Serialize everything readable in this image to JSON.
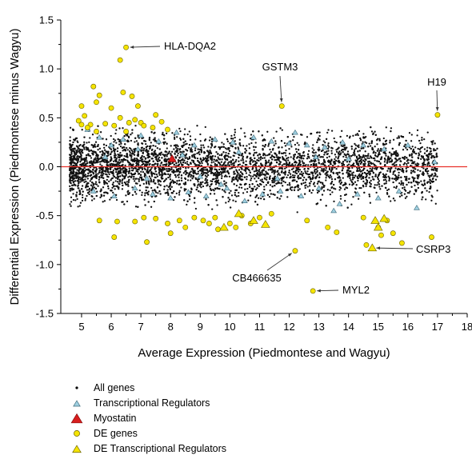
{
  "chart_data": {
    "type": "scatter",
    "title": "",
    "xlabel": "Average Expression (Piedmontese and Wagyu)",
    "ylabel": "Differential Expression (Piedmontese minus Wagyu)",
    "xlim": [
      4.3,
      18
    ],
    "ylim": [
      -1.5,
      1.5
    ],
    "xticks": [
      5,
      6,
      7,
      8,
      9,
      10,
      11,
      12,
      13,
      14,
      15,
      16,
      17,
      18
    ],
    "yticks": [
      -1.5,
      -1.0,
      -0.5,
      0.0,
      0.5,
      1.0,
      1.5
    ],
    "ytick_labels": [
      "-1.5",
      "-1.0",
      "-0.5",
      "0.0",
      "0.5",
      "1.0",
      "1.5"
    ],
    "reference_line": {
      "y": 0,
      "color": "#e8302a"
    },
    "legend_position": "bottom-left",
    "background_cloud": {
      "series": "All genes",
      "note": "dense cloud of thousands of points centred on y=0, spread roughly -0.35..0.35 across x 4.6..17"
    },
    "series": [
      {
        "name": "DE genes",
        "marker": "circle",
        "color": "#f5e400",
        "points": [
          [
            6.5,
            1.22
          ],
          [
            6.3,
            1.09
          ],
          [
            5.4,
            0.82
          ],
          [
            5.6,
            0.73
          ],
          [
            6.4,
            0.76
          ],
          [
            6.7,
            0.72
          ],
          [
            5.0,
            0.62
          ],
          [
            5.5,
            0.66
          ],
          [
            6.0,
            0.6
          ],
          [
            6.9,
            0.62
          ],
          [
            4.9,
            0.47
          ],
          [
            5.1,
            0.52
          ],
          [
            5.3,
            0.43
          ],
          [
            5.0,
            0.43
          ],
          [
            5.2,
            0.4
          ],
          [
            5.8,
            0.44
          ],
          [
            6.1,
            0.42
          ],
          [
            6.3,
            0.5
          ],
          [
            6.6,
            0.45
          ],
          [
            6.8,
            0.48
          ],
          [
            7.0,
            0.45
          ],
          [
            7.1,
            0.42
          ],
          [
            7.4,
            0.4
          ],
          [
            7.5,
            0.53
          ],
          [
            7.7,
            0.46
          ],
          [
            7.9,
            0.38
          ],
          [
            5.5,
            0.36
          ],
          [
            6.5,
            0.36
          ],
          [
            11.75,
            0.62
          ],
          [
            17.0,
            0.53
          ],
          [
            5.6,
            -0.55
          ],
          [
            6.2,
            -0.56
          ],
          [
            6.8,
            -0.56
          ],
          [
            7.1,
            -0.52
          ],
          [
            7.5,
            -0.53
          ],
          [
            7.9,
            -0.58
          ],
          [
            8.3,
            -0.55
          ],
          [
            8.5,
            -0.62
          ],
          [
            8.8,
            -0.52
          ],
          [
            9.1,
            -0.55
          ],
          [
            9.3,
            -0.58
          ],
          [
            9.5,
            -0.52
          ],
          [
            9.6,
            -0.64
          ],
          [
            10.0,
            -0.58
          ],
          [
            10.2,
            -0.62
          ],
          [
            10.4,
            -0.5
          ],
          [
            10.7,
            -0.58
          ],
          [
            11.0,
            -0.52
          ],
          [
            11.4,
            -0.48
          ],
          [
            12.6,
            -0.55
          ],
          [
            13.3,
            -0.62
          ],
          [
            14.5,
            -0.52
          ],
          [
            15.0,
            -0.62
          ],
          [
            15.3,
            -0.55
          ],
          [
            15.8,
            -0.78
          ],
          [
            6.1,
            -0.72
          ],
          [
            7.2,
            -0.77
          ],
          [
            8.0,
            -0.68
          ],
          [
            13.6,
            -0.67
          ],
          [
            15.1,
            -0.7
          ],
          [
            15.5,
            -0.68
          ],
          [
            16.8,
            -0.72
          ],
          [
            14.6,
            -0.8
          ],
          [
            12.2,
            -0.86
          ],
          [
            12.8,
            -1.27
          ]
        ]
      },
      {
        "name": "DE Transcriptional Regulators",
        "marker": "triangle",
        "color": "#f5e400",
        "points": [
          [
            9.8,
            -0.62
          ],
          [
            11.2,
            -0.59
          ],
          [
            10.3,
            -0.48
          ],
          [
            10.8,
            -0.55
          ],
          [
            14.8,
            -0.83
          ],
          [
            14.9,
            -0.55
          ],
          [
            15.0,
            -0.62
          ],
          [
            15.2,
            -0.53
          ]
        ]
      },
      {
        "name": "Myostatin",
        "marker": "triangle",
        "color": "#d81e1e",
        "points": [
          [
            8.05,
            0.08
          ]
        ]
      },
      {
        "name": "Transcriptional Regulators",
        "marker": "triangle",
        "color": "#9ecfe0",
        "points": [
          [
            5.2,
            0.38
          ],
          [
            5.6,
            0.3
          ],
          [
            6.0,
            0.22
          ],
          [
            6.4,
            0.28
          ],
          [
            7.0,
            0.32
          ],
          [
            7.6,
            0.26
          ],
          [
            8.2,
            0.35
          ],
          [
            8.8,
            0.22
          ],
          [
            9.5,
            0.28
          ],
          [
            10.1,
            0.25
          ],
          [
            10.8,
            0.3
          ],
          [
            11.4,
            0.26
          ],
          [
            12.0,
            0.24
          ],
          [
            12.6,
            0.22
          ],
          [
            13.2,
            0.2
          ],
          [
            13.8,
            0.25
          ],
          [
            14.5,
            0.22
          ],
          [
            15.2,
            0.18
          ],
          [
            16.0,
            0.22
          ],
          [
            5.4,
            -0.25
          ],
          [
            6.1,
            -0.3
          ],
          [
            6.8,
            -0.22
          ],
          [
            7.4,
            -0.28
          ],
          [
            8.0,
            -0.32
          ],
          [
            8.6,
            -0.26
          ],
          [
            9.2,
            -0.3
          ],
          [
            9.9,
            -0.22
          ],
          [
            10.5,
            -0.35
          ],
          [
            11.1,
            -0.28
          ],
          [
            11.7,
            -0.25
          ],
          [
            12.4,
            -0.3
          ],
          [
            13.0,
            -0.22
          ],
          [
            13.7,
            -0.38
          ],
          [
            14.3,
            -0.28
          ],
          [
            15.0,
            -0.32
          ],
          [
            15.7,
            -0.25
          ],
          [
            16.3,
            -0.42
          ],
          [
            8.4,
            0.12
          ],
          [
            9.0,
            -0.1
          ],
          [
            10.3,
            0.15
          ],
          [
            11.6,
            -0.12
          ],
          [
            12.9,
            0.1
          ],
          [
            5.8,
            0.1
          ],
          [
            7.2,
            -0.12
          ],
          [
            14.0,
            0.08
          ],
          [
            16.9,
            0.05
          ],
          [
            6.9,
            0.18
          ],
          [
            9.7,
            -0.18
          ],
          [
            12.2,
            0.35
          ],
          [
            13.5,
            -0.45
          ]
        ]
      }
    ],
    "annotations": [
      {
        "text": "HLA-DQA2",
        "point": [
          6.5,
          1.22
        ]
      },
      {
        "text": "GSTM3",
        "point": [
          11.75,
          0.62
        ]
      },
      {
        "text": "H19",
        "point": [
          17.0,
          0.53
        ]
      },
      {
        "text": "CSRP3",
        "point": [
          14.8,
          -0.83
        ]
      },
      {
        "text": "CB466635",
        "point": [
          12.2,
          -0.86
        ]
      },
      {
        "text": "MYL2",
        "point": [
          12.8,
          -1.27
        ]
      }
    ],
    "legend": [
      {
        "label": "All genes",
        "marker": "dot",
        "color": "#000000"
      },
      {
        "label": "Transcriptional Regulators",
        "marker": "triangle",
        "color": "#9ecfe0"
      },
      {
        "label": "Myostatin",
        "marker": "triangle-large",
        "color": "#d81e1e"
      },
      {
        "label": "DE genes",
        "marker": "circle",
        "color": "#f5e400"
      },
      {
        "label": "DE Transcriptional Regulators",
        "marker": "triangle",
        "color": "#f5e400"
      }
    ]
  }
}
